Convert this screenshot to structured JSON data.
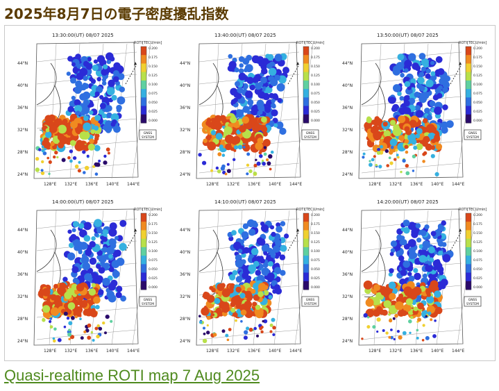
{
  "page_title": "2025年8月7日の電子密度擾乱指数",
  "caption_link": "Quasi-realtime ROTI map 7 Aug 2025",
  "panel_common": {
    "colorbar_title": "ROTI[TECU/min]",
    "colorbar_ticks": [
      "0.200",
      "0.175",
      "0.150",
      "0.125",
      "0.100",
      "0.075",
      "0.050",
      "0.025",
      "0.000"
    ],
    "lat_labels": [
      "44°N",
      "40°N",
      "36°N",
      "32°N",
      "28°N",
      "24°N"
    ],
    "lon_labels": [
      "128°E",
      "132°E",
      "136°E",
      "140°E",
      "144°E"
    ],
    "badge_line1": "GNSS",
    "badge_line2": "SYSTEM"
  },
  "panels": [
    {
      "time": "13:30:00(UT) 08/07 2025"
    },
    {
      "time": "13:40:00(UT) 08/07 2025"
    },
    {
      "time": "13:50:00(UT) 08/07 2025"
    },
    {
      "time": "14:00:00(UT) 08/07 2025"
    },
    {
      "time": "14:10:00(UT) 08/07 2025"
    },
    {
      "time": "14:20:00(UT) 08/07 2025"
    }
  ],
  "colors": {
    "title": "#5a3a00",
    "link": "#4f8a1e",
    "low": "#2b2bd6",
    "high": "#d9471a"
  }
}
